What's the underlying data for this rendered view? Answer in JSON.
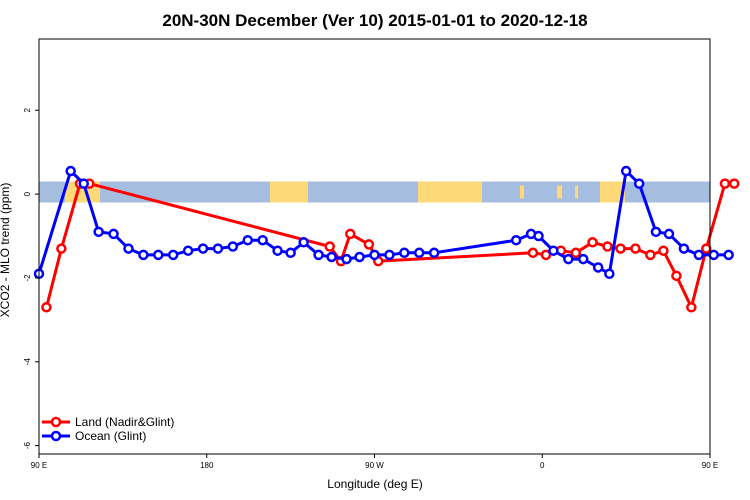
{
  "chart_data": {
    "type": "line",
    "title": "20N-30N December (Ver 10)   2015-01-01 to 2020-12-18",
    "xlabel": "Longitude (deg E)",
    "ylabel": "XCO2 - MLO trend (ppm)",
    "xlim": [
      90,
      450
    ],
    "ylim": [
      -6.2,
      3.7
    ],
    "x_ticks": [
      {
        "value": 90,
        "label": "90 E"
      },
      {
        "value": 180,
        "label": "180"
      },
      {
        "value": 270,
        "label": "90 W"
      },
      {
        "value": 360,
        "label": "0"
      },
      {
        "value": 450,
        "label": "90 E"
      },
      {
        "value": 540,
        "label": "180"
      }
    ],
    "y_ticks": [
      {
        "value": 2,
        "label": "2"
      },
      {
        "value": 0,
        "label": "0"
      },
      {
        "value": -2,
        "label": "-2"
      },
      {
        "value": -4,
        "label": "-4"
      },
      {
        "value": -6,
        "label": "-6"
      }
    ],
    "map_strip": {
      "y_range": [
        -0.2,
        0.3
      ],
      "ocean_color": "#a5bddf",
      "land_color": "#fdd978"
    },
    "legend": {
      "position": "bottom-left"
    },
    "series": [
      {
        "name": "Land (Nadir&Glint)",
        "color": "#ff0000",
        "points": [
          [
            94,
            -2.7
          ],
          [
            102,
            -1.3
          ],
          [
            112,
            0.25
          ],
          [
            117,
            0.25
          ],
          [
            246,
            -1.25
          ],
          [
            252,
            -1.6
          ],
          [
            257,
            -0.95
          ],
          [
            267,
            -1.2
          ],
          [
            272,
            -1.6
          ],
          [
            355,
            -1.4
          ],
          [
            362,
            -1.45
          ],
          [
            370,
            -1.35
          ],
          [
            378,
            -1.4
          ],
          [
            387,
            -1.15
          ],
          [
            395,
            -1.25
          ],
          [
            402,
            -1.3
          ],
          [
            410,
            -1.3
          ],
          [
            418,
            -1.45
          ],
          [
            425,
            -1.35
          ],
          [
            432,
            -1.95
          ],
          [
            440,
            -2.7
          ],
          [
            448,
            -1.3
          ],
          [
            458,
            0.25
          ],
          [
            463,
            0.25
          ]
        ]
      },
      {
        "name": "Ocean (Glint)",
        "color": "#0000ff",
        "points": [
          [
            90,
            -1.9
          ],
          [
            107,
            0.55
          ],
          [
            114,
            0.25
          ],
          [
            122,
            -0.9
          ],
          [
            130,
            -0.95
          ],
          [
            138,
            -1.3
          ],
          [
            146,
            -1.45
          ],
          [
            154,
            -1.45
          ],
          [
            162,
            -1.45
          ],
          [
            170,
            -1.35
          ],
          [
            178,
            -1.3
          ],
          [
            186,
            -1.3
          ],
          [
            194,
            -1.25
          ],
          [
            202,
            -1.1
          ],
          [
            210,
            -1.1
          ],
          [
            218,
            -1.35
          ],
          [
            225,
            -1.4
          ],
          [
            232,
            -1.15
          ],
          [
            240,
            -1.45
          ],
          [
            247,
            -1.5
          ],
          [
            255,
            -1.55
          ],
          [
            262,
            -1.5
          ],
          [
            270,
            -1.45
          ],
          [
            278,
            -1.45
          ],
          [
            286,
            -1.4
          ],
          [
            294,
            -1.4
          ],
          [
            302,
            -1.4
          ],
          [
            346,
            -1.1
          ],
          [
            354,
            -0.95
          ],
          [
            358,
            -1.0
          ],
          [
            366,
            -1.35
          ],
          [
            374,
            -1.55
          ],
          [
            382,
            -1.55
          ],
          [
            390,
            -1.75
          ],
          [
            396,
            -1.9
          ],
          [
            405,
            0.55
          ],
          [
            412,
            0.25
          ],
          [
            421,
            -0.9
          ],
          [
            428,
            -0.95
          ],
          [
            436,
            -1.3
          ],
          [
            444,
            -1.45
          ],
          [
            452,
            -1.45
          ],
          [
            460,
            -1.45
          ]
        ]
      }
    ]
  }
}
